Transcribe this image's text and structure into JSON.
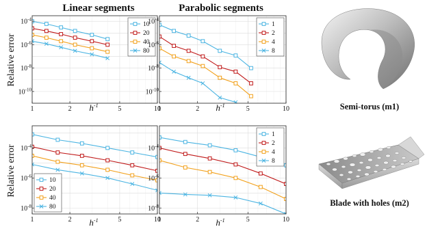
{
  "column_titles": [
    "Linear segments",
    "Parabolic segments"
  ],
  "ylabel": "Relative error",
  "xlabel_base": "h",
  "xlabel_exp": "-1",
  "captions": [
    "Semi-torus (m1)",
    "Blade with holes (m2)"
  ],
  "colors": {
    "s1": "#4ab4e2",
    "s2": "#c01818",
    "s3": "#f2a01a",
    "s4": "#4ab4e2"
  },
  "markers": [
    "square",
    "square",
    "square",
    "x"
  ],
  "chart_data": [
    {
      "type": "line",
      "xscale": "log",
      "yscale": "log",
      "xlim": [
        1,
        10
      ],
      "ylim": [
        1e-11,
        0.0003
      ],
      "xticks": [
        1,
        2,
        5,
        10
      ],
      "yticks": [
        0.0001,
        1e-06,
        1e-08,
        1e-10
      ],
      "legend": "top-right",
      "x": [
        1,
        1.3,
        1.7,
        2.2,
        3,
        4
      ],
      "series": [
        {
          "name": "10",
          "values": [
            0.0001,
            6e-05,
            3e-05,
            1.5e-05,
            7e-06,
            3e-06
          ]
        },
        {
          "name": "20",
          "values": [
            2.5e-05,
            1.5e-05,
            8e-06,
            4e-06,
            2e-06,
            1e-06
          ]
        },
        {
          "name": "40",
          "values": [
            7e-06,
            4e-06,
            2e-06,
            1e-06,
            5e-07,
            2.5e-07
          ]
        },
        {
          "name": "80",
          "values": [
            2e-06,
            1.2e-06,
            6e-07,
            3e-07,
            1.5e-07,
            7e-08
          ]
        }
      ]
    },
    {
      "type": "line",
      "xscale": "log",
      "yscale": "log",
      "xlim": [
        1,
        10
      ],
      "ylim": [
        1e-11,
        0.0003
      ],
      "xticks": [
        1,
        2,
        5,
        10
      ],
      "yticks": [
        0.0001,
        1e-06,
        1e-08,
        1e-10
      ],
      "legend": "top-right",
      "x": [
        1,
        1.3,
        1.7,
        2.2,
        3,
        4,
        5.3
      ],
      "series": [
        {
          "name": "1",
          "values": [
            5e-05,
            1.5e-05,
            6e-06,
            2e-06,
            3e-07,
            1.2e-07,
            1e-08
          ]
        },
        {
          "name": "2",
          "values": [
            5e-06,
            8e-07,
            3e-07,
            1e-07,
            1.2e-08,
            5e-09,
            5e-10
          ]
        },
        {
          "name": "4",
          "values": [
            5e-07,
            1e-07,
            4e-08,
            1.5e-08,
            1.5e-09,
            5e-10,
            4e-11
          ]
        },
        {
          "name": "8",
          "values": [
            3e-08,
            5e-09,
            1.5e-09,
            5e-10,
            3e-11,
            1.2e-11,
            2e-12
          ]
        }
      ]
    },
    {
      "type": "line",
      "xscale": "log",
      "yscale": "log",
      "xlim": [
        1,
        10
      ],
      "ylim": [
        4e-09,
        0.003
      ],
      "xticks": [
        1,
        2,
        5,
        10
      ],
      "yticks": [
        0.0001,
        1e-06,
        1e-08
      ],
      "legend": "bottom-left",
      "x": [
        1,
        1.6,
        2.5,
        4,
        6.3,
        10
      ],
      "series": [
        {
          "name": "10",
          "values": [
            0.0008,
            0.00035,
            0.0002,
            0.0001,
            5e-05,
            2.5e-05
          ]
        },
        {
          "name": "20",
          "values": [
            0.00012,
            5e-05,
            3e-05,
            1.5e-05,
            7e-06,
            3e-06
          ]
        },
        {
          "name": "40",
          "values": [
            3e-05,
            1.2e-05,
            7e-06,
            3.5e-06,
            1.5e-06,
            7e-07
          ]
        },
        {
          "name": "80",
          "values": [
            8e-06,
            3.5e-06,
            2e-06,
            1e-06,
            4e-07,
            1.5e-07
          ]
        }
      ]
    },
    {
      "type": "line",
      "xscale": "log",
      "yscale": "log",
      "xlim": [
        1,
        10
      ],
      "ylim": [
        4e-09,
        0.003
      ],
      "xticks": [
        1,
        2,
        5,
        10
      ],
      "yticks": [
        0.0001,
        1e-06,
        1e-08
      ],
      "legend": "top-right",
      "x": [
        1,
        1.6,
        2.5,
        4,
        6.3,
        10
      ],
      "series": [
        {
          "name": "1",
          "values": [
            0.0005,
            0.00025,
            0.00015,
            7e-05,
            2.5e-05,
            7e-06
          ]
        },
        {
          "name": "2",
          "values": [
            0.0001,
            4e-05,
            2e-05,
            8e-06,
            2e-06,
            4e-07
          ]
        },
        {
          "name": "4",
          "values": [
            1.5e-05,
            5e-06,
            2.5e-06,
            1e-06,
            2.5e-07,
            4e-08
          ]
        },
        {
          "name": "8",
          "values": [
            1e-07,
            8e-08,
            7e-08,
            5e-08,
            2e-08,
            4e-09
          ]
        }
      ]
    }
  ]
}
